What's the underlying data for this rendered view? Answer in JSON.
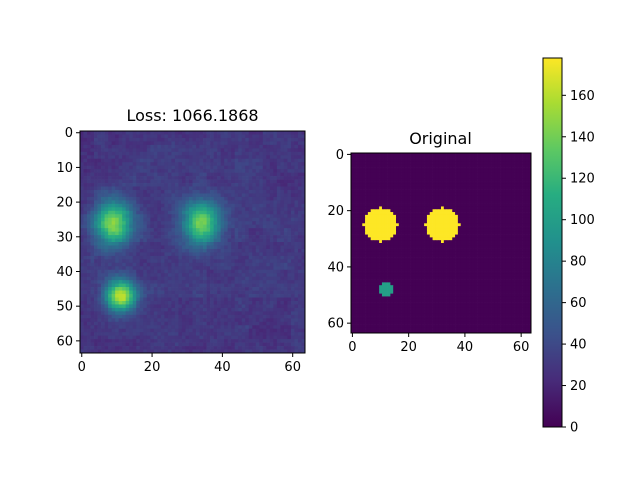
{
  "chart_data": [
    {
      "type": "heatmap",
      "title": "Loss: 1066.1868",
      "grid_size": [
        64,
        64
      ],
      "xlim": [
        0,
        63
      ],
      "ylim": [
        63,
        0
      ],
      "x_ticks": [
        0,
        20,
        40,
        60
      ],
      "y_ticks": [
        0,
        10,
        20,
        30,
        40,
        50,
        60
      ],
      "colormap": "viridis",
      "value_range": [
        0,
        178
      ],
      "background_level": 30,
      "blobs": [
        {
          "cx": 9,
          "cy": 26,
          "rx": 5.5,
          "ry": 6.5,
          "peak": 150
        },
        {
          "cx": 34,
          "cy": 26,
          "rx": 5.5,
          "ry": 6.5,
          "peak": 140
        },
        {
          "cx": 11,
          "cy": 47,
          "rx": 4.5,
          "ry": 4.5,
          "peak": 165
        }
      ]
    },
    {
      "type": "heatmap",
      "title": "Original",
      "grid_size": [
        64,
        64
      ],
      "xlim": [
        0,
        63
      ],
      "ylim": [
        63,
        0
      ],
      "x_ticks": [
        0,
        20,
        40,
        60
      ],
      "y_ticks": [
        0,
        20,
        40,
        60
      ],
      "colormap": "viridis",
      "value_range": [
        0,
        178
      ],
      "background_level": 0,
      "disks": [
        {
          "cx": 10,
          "cy": 25,
          "r": 6,
          "value": 178
        },
        {
          "cx": 32,
          "cy": 25,
          "r": 6,
          "value": 178
        },
        {
          "cx": 12,
          "cy": 48,
          "r": 2.6,
          "value": 100
        }
      ]
    }
  ],
  "colorbar": {
    "ticks": [
      0,
      20,
      40,
      60,
      80,
      100,
      120,
      140,
      160
    ],
    "range": [
      0,
      178
    ],
    "colormap": "viridis"
  }
}
